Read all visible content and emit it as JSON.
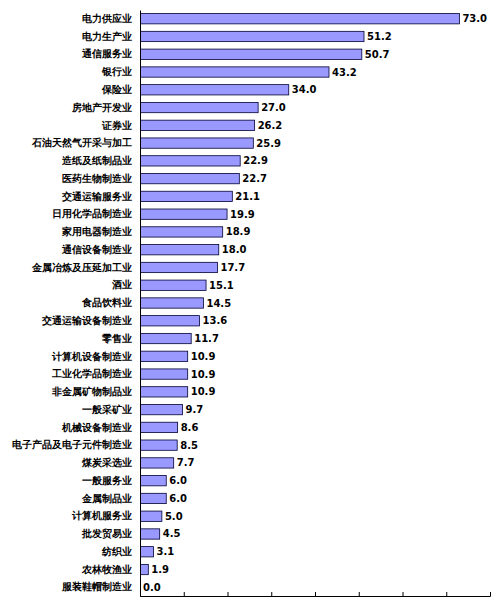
{
  "chart_data": {
    "type": "bar",
    "orientation": "horizontal",
    "categories": [
      "电力供应业",
      "电力生产业",
      "通信服务业",
      "银行业",
      "保险业",
      "房地产开发业",
      "证券业",
      "石油天然气开采与加工",
      "造纸及纸制品业",
      "医药生物制造业",
      "交通运输服务业",
      "日用化学品制造业",
      "家用电器制造业",
      "通信设备制造业",
      "金属冶炼及压延加工业",
      "酒业",
      "食品饮料业",
      "交通运输设备制造业",
      "零售业",
      "计算机设备制造业",
      "工业化学品制造业",
      "非金属矿物制品业",
      "一般采矿业",
      "机械设备制造业",
      "电子产品及电子元件制造业",
      "煤炭采选业",
      "一般服务业",
      "金属制品业",
      "计算机服务业",
      "批发贸易业",
      "纺织业",
      "农林牧渔业",
      "服装鞋帽制造业"
    ],
    "values": [
      73.0,
      51.2,
      50.7,
      43.2,
      34.0,
      27.0,
      26.2,
      25.9,
      22.9,
      22.7,
      21.1,
      19.9,
      18.9,
      18.0,
      17.7,
      15.1,
      14.5,
      13.6,
      11.7,
      10.9,
      10.9,
      10.9,
      9.7,
      8.6,
      8.5,
      7.7,
      6.0,
      6.0,
      5.0,
      4.5,
      3.1,
      1.9,
      0.0
    ],
    "value_labels": [
      "73.0",
      "51.2",
      "50.7",
      "43.2",
      "34.0",
      "27.0",
      "26.2",
      "25.9",
      "22.9",
      "22.7",
      "21.1",
      "19.9",
      "18.9",
      "18.0",
      "17.7",
      "15.1",
      "14.5",
      "13.6",
      "11.7",
      "10.9",
      "10.9",
      "10.9",
      "9.7",
      "8.6",
      "8.5",
      "7.7",
      "6.0",
      "6.0",
      "5.0",
      "4.5",
      "3.1",
      "1.9",
      "0.0"
    ],
    "color": "#9999ff",
    "xlim": [
      0,
      80
    ],
    "xticks": [
      0,
      10,
      20,
      30,
      40,
      50,
      60,
      70,
      80
    ],
    "grid": false,
    "data_labels": true,
    "tick_labels": "y"
  }
}
